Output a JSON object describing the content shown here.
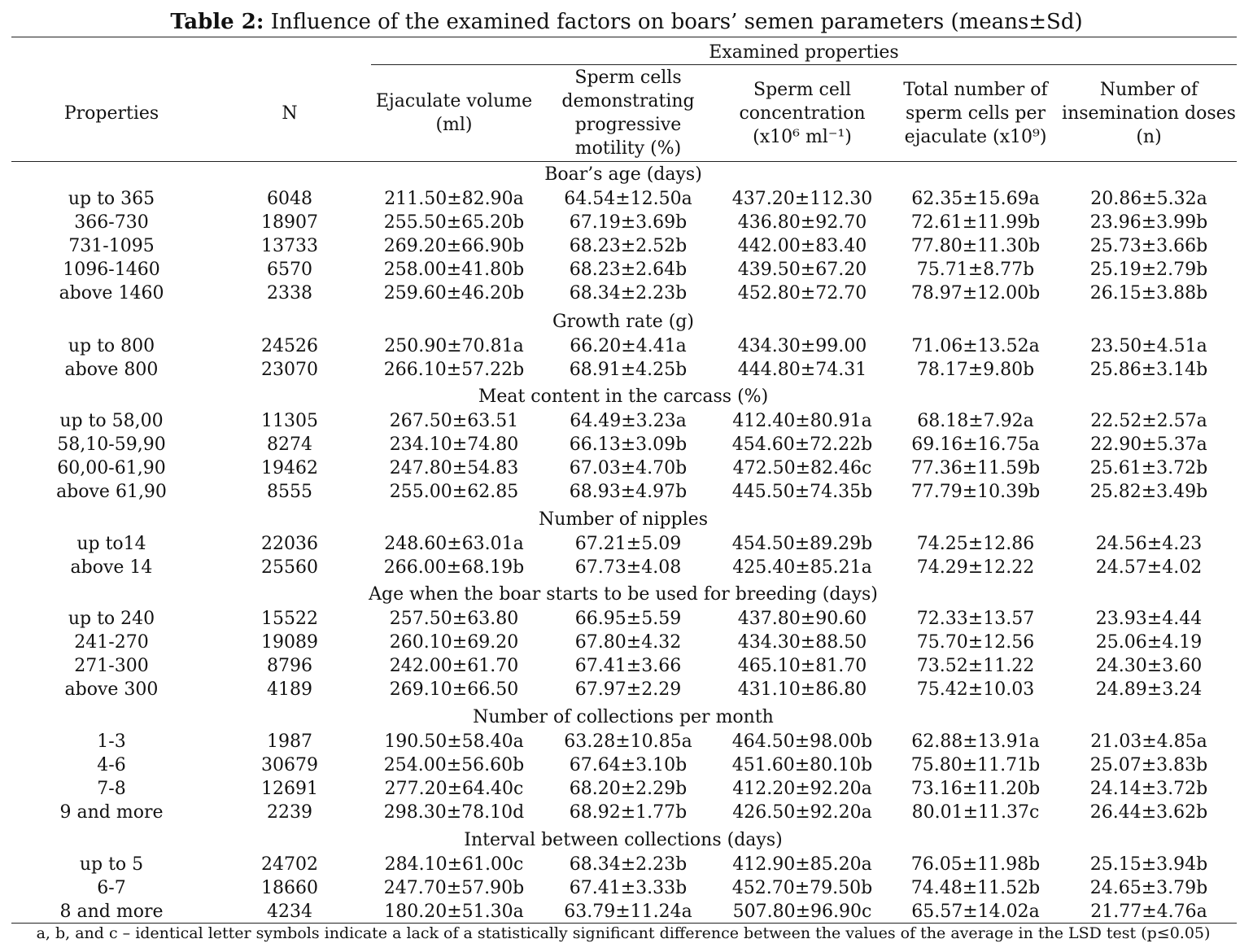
{
  "title": {
    "label": "Table 2:",
    "text": "Influence of the examined factors on boars’ semen parameters (means±Sd)"
  },
  "header": {
    "group_label": "Examined properties",
    "columns": [
      {
        "lines": [
          "Properties"
        ]
      },
      {
        "lines": [
          "N"
        ]
      },
      {
        "lines": [
          "Ejaculate volume",
          "(ml)"
        ]
      },
      {
        "lines": [
          "Sperm cells",
          "demonstrating",
          "progressive",
          "motility (%)"
        ]
      },
      {
        "lines": [
          "Sperm cell",
          "concentration",
          "(x10⁶ ml⁻¹)"
        ]
      },
      {
        "lines": [
          "Total number of",
          "sperm cells per",
          "ejaculate (x10⁹)"
        ]
      },
      {
        "lines": [
          "Number of",
          "insemination doses",
          "(n)"
        ]
      }
    ]
  },
  "sections": [
    {
      "title": "Boar’s age (days)",
      "rows": [
        [
          "up to 365",
          "6048",
          "211.50±82.90a",
          "64.54±12.50a",
          "437.20±112.30",
          "62.35±15.69a",
          "20.86±5.32a"
        ],
        [
          "366-730",
          "18907",
          "255.50±65.20b",
          "67.19±3.69b",
          "436.80±92.70",
          "72.61±11.99b",
          "23.96±3.99b"
        ],
        [
          "731-1095",
          "13733",
          "269.20±66.90b",
          "68.23±2.52b",
          "442.00±83.40",
          "77.80±11.30b",
          "25.73±3.66b"
        ],
        [
          "1096-1460",
          "6570",
          "258.00±41.80b",
          "68.23±2.64b",
          "439.50±67.20",
          "75.71±8.77b",
          "25.19±2.79b"
        ],
        [
          "above 1460",
          "2338",
          "259.60±46.20b",
          "68.34±2.23b",
          "452.80±72.70",
          "78.97±12.00b",
          "26.15±3.88b"
        ]
      ]
    },
    {
      "title": "Growth rate (g)",
      "rows": [
        [
          "up to 800",
          "24526",
          "250.90±70.81a",
          "66.20±4.41a",
          "434.30±99.00",
          "71.06±13.52a",
          "23.50±4.51a"
        ],
        [
          "above 800",
          "23070",
          "266.10±57.22b",
          "68.91±4.25b",
          "444.80±74.31",
          "78.17±9.80b",
          "25.86±3.14b"
        ]
      ]
    },
    {
      "title": "Meat content in the carcass (%)",
      "rows": [
        [
          "up to 58,00",
          "11305",
          "267.50±63.51",
          "64.49±3.23a",
          "412.40±80.91a",
          "68.18±7.92a",
          "22.52±2.57a"
        ],
        [
          "58,10-59,90",
          "8274",
          "234.10±74.80",
          "66.13±3.09b",
          "454.60±72.22b",
          "69.16±16.75a",
          "22.90±5.37a"
        ],
        [
          "60,00-61,90",
          "19462",
          "247.80±54.83",
          "67.03±4.70b",
          "472.50±82.46c",
          "77.36±11.59b",
          "25.61±3.72b"
        ],
        [
          "above 61,90",
          "8555",
          "255.00±62.85",
          "68.93±4.97b",
          "445.50±74.35b",
          "77.79±10.39b",
          "25.82±3.49b"
        ]
      ]
    },
    {
      "title": "Number of nipples",
      "rows": [
        [
          "up to14",
          "22036",
          "248.60±63.01a",
          "67.21±5.09",
          "454.50±89.29b",
          "74.25±12.86",
          "24.56±4.23"
        ],
        [
          "above 14",
          "25560",
          "266.00±68.19b",
          "67.73±4.08",
          "425.40±85.21a",
          "74.29±12.22",
          "24.57±4.02"
        ]
      ]
    },
    {
      "title": "Age when the boar starts to be used for breeding (days)",
      "rows": [
        [
          "up to 240",
          "15522",
          "257.50±63.80",
          "66.95±5.59",
          "437.80±90.60",
          "72.33±13.57",
          "23.93±4.44"
        ],
        [
          "241-270",
          "19089",
          "260.10±69.20",
          "67.80±4.32",
          "434.30±88.50",
          "75.70±12.56",
          "25.06±4.19"
        ],
        [
          "271-300",
          "8796",
          "242.00±61.70",
          "67.41±3.66",
          "465.10±81.70",
          "73.52±11.22",
          "24.30±3.60"
        ],
        [
          "above 300",
          "4189",
          "269.10±66.50",
          "67.97±2.29",
          "431.10±86.80",
          "75.42±10.03",
          "24.89±3.24"
        ]
      ]
    },
    {
      "title": "Number of collections per month",
      "rows": [
        [
          "1-3",
          "1987",
          "190.50±58.40a",
          "63.28±10.85a",
          "464.50±98.00b",
          "62.88±13.91a",
          "21.03±4.85a"
        ],
        [
          "4-6",
          "30679",
          "254.00±56.60b",
          "67.64±3.10b",
          "451.60±80.10b",
          "75.80±11.71b",
          "25.07±3.83b"
        ],
        [
          "7-8",
          "12691",
          "277.20±64.40c",
          "68.20±2.29b",
          "412.20±92.20a",
          "73.16±11.20b",
          "24.14±3.72b"
        ],
        [
          "9 and more",
          "2239",
          "298.30±78.10d",
          "68.92±1.77b",
          "426.50±92.20a",
          "80.01±11.37c",
          "26.44±3.62b"
        ]
      ]
    },
    {
      "title": "Interval between collections (days)",
      "rows": [
        [
          "up to 5",
          "24702",
          "284.10±61.00c",
          "68.34±2.23b",
          "412.90±85.20a",
          "76.05±11.98b",
          "25.15±3.94b"
        ],
        [
          "6-7",
          "18660",
          "247.70±57.90b",
          "67.41±3.33b",
          "452.70±79.50b",
          "74.48±11.52b",
          "24.65±3.79b"
        ],
        [
          "8 and more",
          "4234",
          "180.20±51.30a",
          "63.79±11.24a",
          "507.80±96.90c",
          "65.57±14.02a",
          "21.77±4.76a"
        ]
      ]
    }
  ],
  "footnote": "a, b, and c – identical letter symbols indicate a lack of a statistically significant difference between the values of the average in the LSD test (p≤0.05)"
}
